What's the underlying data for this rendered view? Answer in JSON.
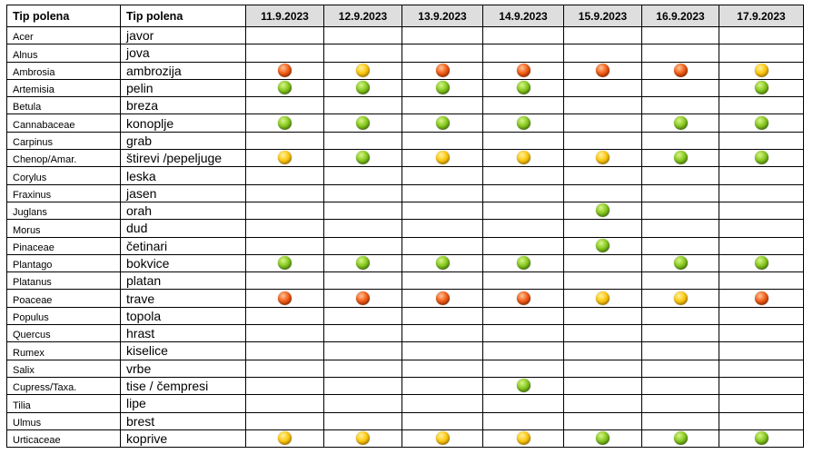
{
  "table": {
    "header_latin": "Tip polena",
    "header_local": "Tip polena",
    "dates": [
      "11.9.2023",
      "12.9.2023",
      "13.9.2023",
      "14.9.2023",
      "15.9.2023",
      "16.9.2023",
      "17.9.2023"
    ],
    "levels_legend": {
      "low": "#86c81f",
      "medium": "#fcc70e",
      "high": "#f25c16"
    },
    "rows": [
      {
        "latin": "Acer",
        "local": "javor",
        "levels": [
          null,
          null,
          null,
          null,
          null,
          null,
          null
        ]
      },
      {
        "latin": "Alnus",
        "local": "jova",
        "levels": [
          null,
          null,
          null,
          null,
          null,
          null,
          null
        ]
      },
      {
        "latin": "Ambrosia",
        "local": "ambrozija",
        "levels": [
          "high",
          "medium",
          "high",
          "high",
          "high",
          "high",
          "medium"
        ]
      },
      {
        "latin": "Artemisia",
        "local": "pelin",
        "levels": [
          "low",
          "low",
          "low",
          "low",
          null,
          null,
          "low"
        ]
      },
      {
        "latin": "Betula",
        "local": "breza",
        "levels": [
          null,
          null,
          null,
          null,
          null,
          null,
          null
        ]
      },
      {
        "latin": "Cannabaceae",
        "local": "konoplje",
        "levels": [
          "low",
          "low",
          "low",
          "low",
          null,
          "low",
          "low"
        ]
      },
      {
        "latin": "Carpinus",
        "local": "grab",
        "levels": [
          null,
          null,
          null,
          null,
          null,
          null,
          null
        ]
      },
      {
        "latin": "Chenop/Amar.",
        "local": "štirevi /pepeljuge",
        "levels": [
          "medium",
          "low",
          "medium",
          "medium",
          "medium",
          "low",
          "low"
        ]
      },
      {
        "latin": "Corylus",
        "local": "leska",
        "levels": [
          null,
          null,
          null,
          null,
          null,
          null,
          null
        ]
      },
      {
        "latin": "Fraxinus",
        "local": "jasen",
        "levels": [
          null,
          null,
          null,
          null,
          null,
          null,
          null
        ]
      },
      {
        "latin": "Juglans",
        "local": "orah",
        "levels": [
          null,
          null,
          null,
          null,
          "low",
          null,
          null
        ]
      },
      {
        "latin": "Morus",
        "local": "dud",
        "levels": [
          null,
          null,
          null,
          null,
          null,
          null,
          null
        ]
      },
      {
        "latin": "Pinaceae",
        "local": "četinari",
        "levels": [
          null,
          null,
          null,
          null,
          "low",
          null,
          null
        ]
      },
      {
        "latin": "Plantago",
        "local": "bokvice",
        "levels": [
          "low",
          "low",
          "low",
          "low",
          null,
          "low",
          "low"
        ]
      },
      {
        "latin": "Platanus",
        "local": "platan",
        "levels": [
          null,
          null,
          null,
          null,
          null,
          null,
          null
        ]
      },
      {
        "latin": "Poaceae",
        "local": "trave",
        "levels": [
          "high",
          "high",
          "high",
          "high",
          "medium",
          "medium",
          "high"
        ]
      },
      {
        "latin": "Populus",
        "local": "topola",
        "levels": [
          null,
          null,
          null,
          null,
          null,
          null,
          null
        ]
      },
      {
        "latin": "Quercus",
        "local": "hrast",
        "levels": [
          null,
          null,
          null,
          null,
          null,
          null,
          null
        ]
      },
      {
        "latin": "Rumex",
        "local": "kiselice",
        "levels": [
          null,
          null,
          null,
          null,
          null,
          null,
          null
        ]
      },
      {
        "latin": "Salix",
        "local": "vrbe",
        "levels": [
          null,
          null,
          null,
          null,
          null,
          null,
          null
        ]
      },
      {
        "latin": "Cupress/Taxa.",
        "local": "tise / čempresi",
        "levels": [
          null,
          null,
          null,
          "low",
          null,
          null,
          null
        ]
      },
      {
        "latin": "Tilia",
        "local": "lipe",
        "levels": [
          null,
          null,
          null,
          null,
          null,
          null,
          null
        ]
      },
      {
        "latin": "Ulmus",
        "local": "brest",
        "levels": [
          null,
          null,
          null,
          null,
          null,
          null,
          null
        ]
      },
      {
        "latin": "Urticaceae",
        "local": "koprive",
        "levels": [
          "medium",
          "medium",
          "medium",
          "medium",
          "low",
          "low",
          "low"
        ]
      }
    ]
  }
}
